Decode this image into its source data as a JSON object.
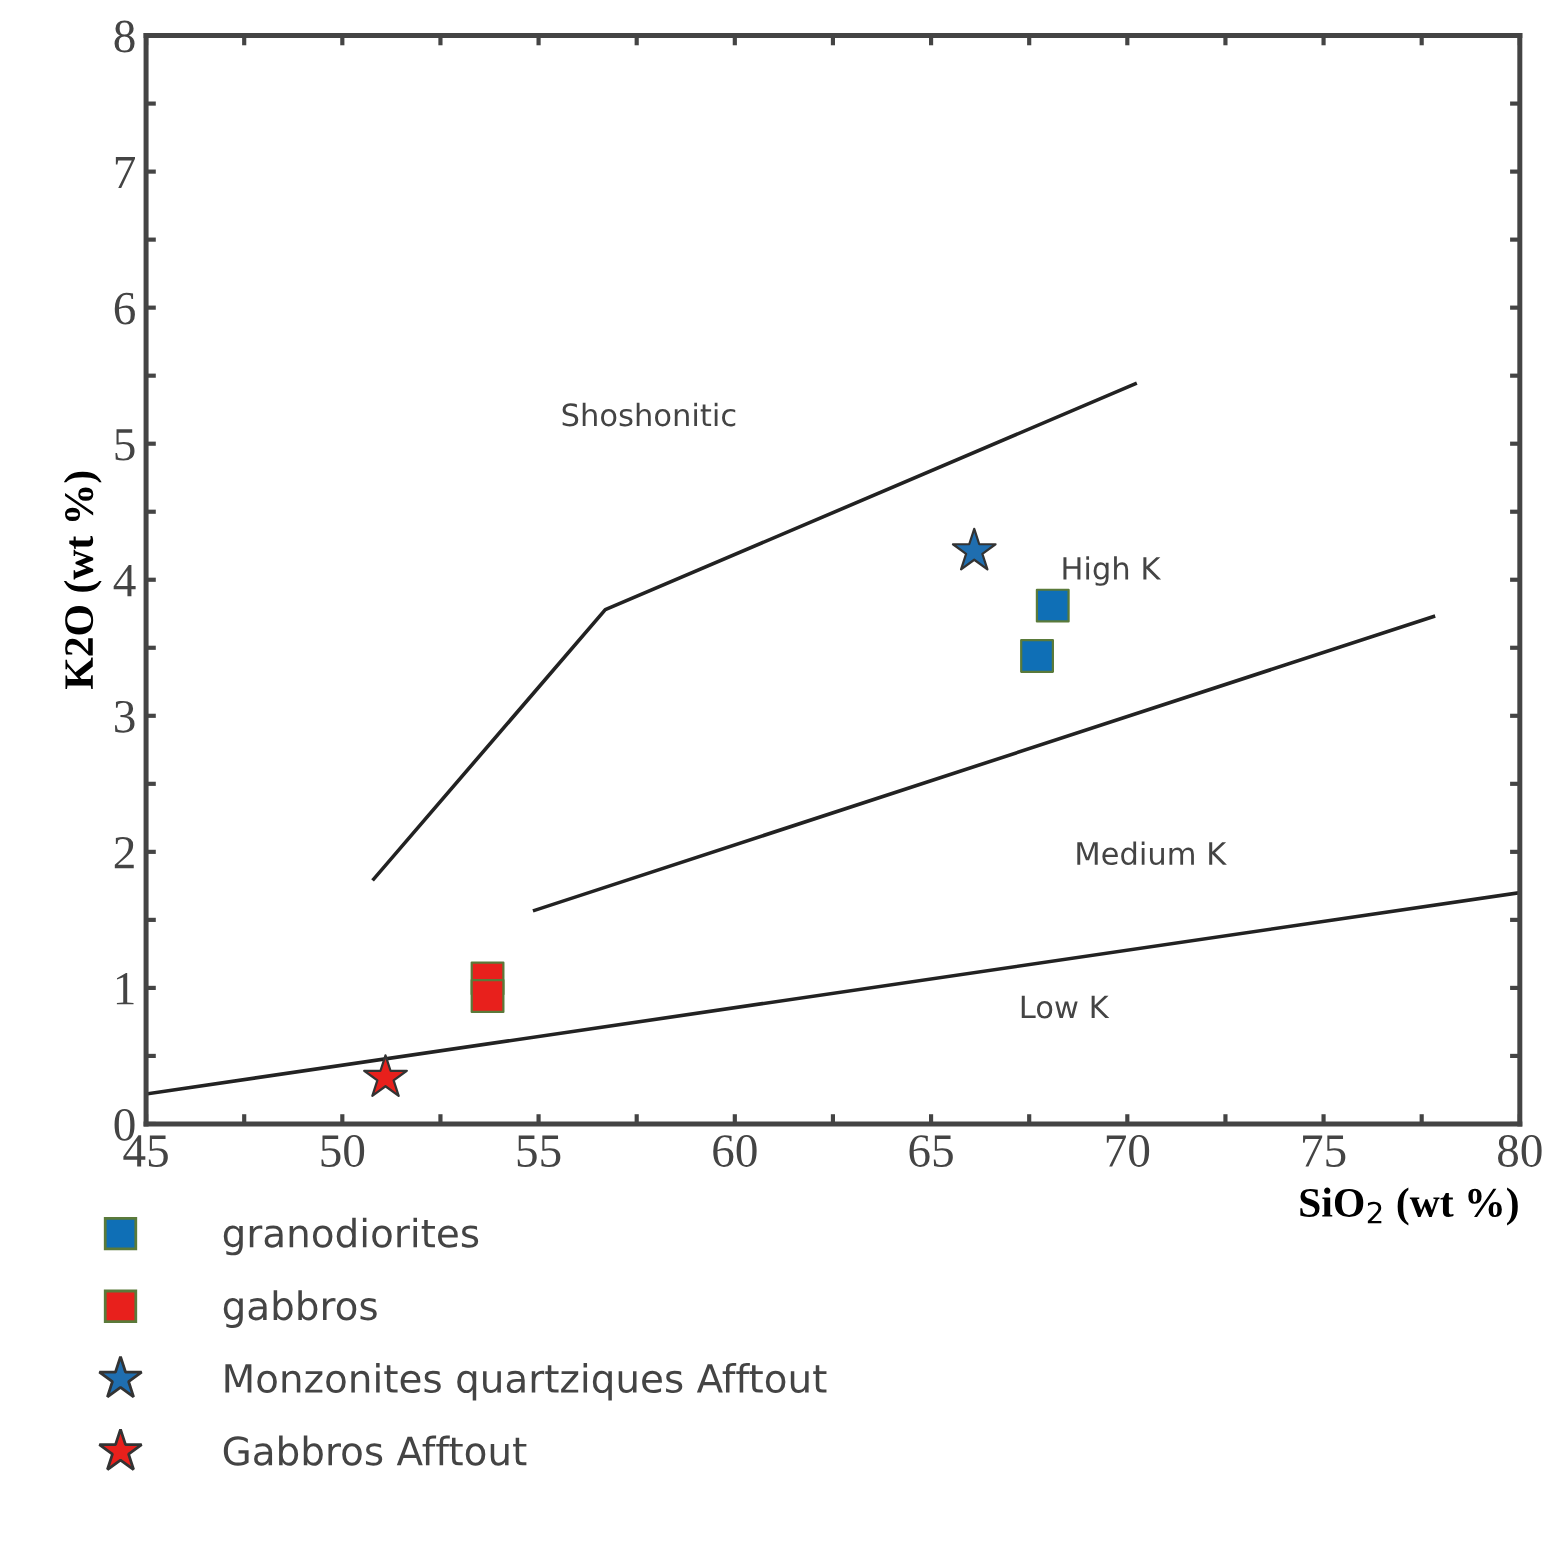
{
  "chart_data": {
    "type": "scatter",
    "xlabel": "SiO$_{2}$ (wt %)",
    "ylabel": "K2O (wt %)",
    "xlim": [
      45,
      80
    ],
    "ylim": [
      0,
      8
    ],
    "xticks": [
      45,
      {
        "value": 47.5,
        "label": null
      },
      50,
      {
        "value": 52.5,
        "label": null
      },
      55,
      {
        "value": 57.5,
        "label": null
      },
      60,
      {
        "value": 62.5,
        "label": null
      },
      65,
      {
        "value": 67.5,
        "label": null
      },
      70,
      {
        "value": 72.5,
        "label": null
      },
      75,
      {
        "value": 77.5,
        "label": null
      },
      80
    ],
    "yticks": [
      0,
      {
        "value": 0.5,
        "label": null
      },
      1,
      {
        "value": 1.5,
        "label": null
      },
      2,
      {
        "value": 2.5,
        "label": null
      },
      3,
      {
        "value": 3.5,
        "label": null
      },
      4,
      {
        "value": 4.5,
        "label": null
      },
      5,
      {
        "value": 5.5,
        "label": null
      },
      6,
      {
        "value": 6.5,
        "label": null
      },
      7,
      {
        "value": 7.5,
        "label": null
      },
      8
    ],
    "grid": false,
    "legend": "bottom left",
    "series": [
      {
        "type": "line",
        "color": "#222222",
        "line_style": "solid",
        "marker": "none",
        "x": [
          50.8,
          56.7,
          70.2
        ],
        "values": [
          1.8,
          3.78,
          5.44
        ]
      },
      {
        "type": "line",
        "color": "#222222",
        "line_style": "solid",
        "marker": "none",
        "x": [
          54.9,
          77.8
        ],
        "values": [
          1.57,
          3.73
        ]
      },
      {
        "type": "line",
        "color": "#222222",
        "line_style": "solid",
        "marker": "none",
        "x": [
          45,
          80
        ],
        "values": [
          0.22,
          1.7
        ]
      },
      {
        "name": "granodiorites",
        "color": "#0f6fb6",
        "marker": "square",
        "x": [
          68.1,
          67.7
        ],
        "values": [
          3.81,
          3.44
        ]
      },
      {
        "name": "gabbros",
        "color": "#e8201c",
        "marker": "square",
        "x": [
          53.7,
          53.7
        ],
        "values": [
          1.07,
          0.94
        ]
      },
      {
        "name": "Monzonites quartziques Afftout",
        "color": "#1f6eb0",
        "marker": "star",
        "x": [
          66.1
        ],
        "values": [
          4.21
        ]
      },
      {
        "name": "Gabbros Afftout",
        "color": "#e8201c",
        "marker": "star",
        "x": [
          51.1
        ],
        "values": [
          0.34
        ]
      }
    ],
    "annotations": [
      "Shoshonitic",
      "High K",
      "Medium K",
      "Low K"
    ]
  }
}
